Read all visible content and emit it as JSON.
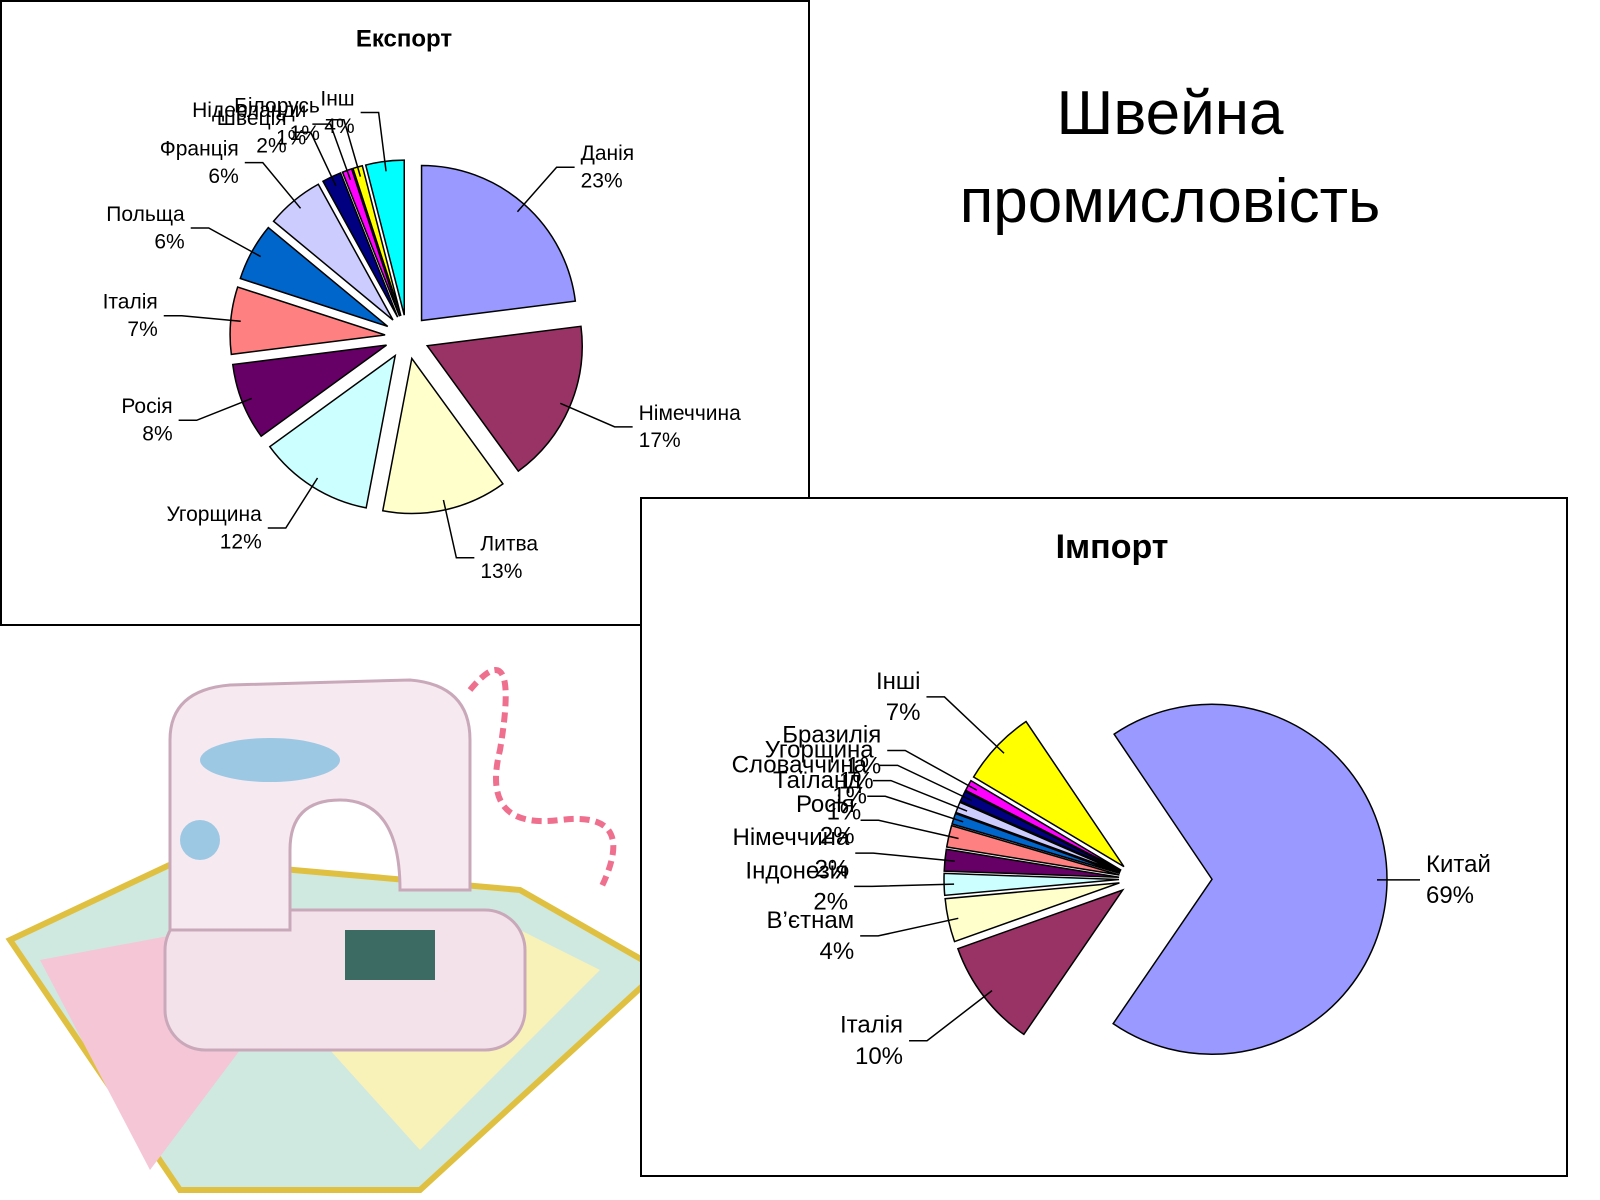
{
  "title": "Швейна промисловість",
  "chart_data": [
    {
      "type": "pie",
      "title": "Експорт",
      "categories": [
        "Данія",
        "Німеччина",
        "Литва",
        "Угорщина",
        "Росія",
        "Італія",
        "Польща",
        "Франція",
        "Швеція",
        "Нідерланди",
        "Білорусь",
        "Інш"
      ],
      "values": [
        23,
        17,
        13,
        12,
        8,
        7,
        6,
        6,
        2,
        1,
        1,
        4
      ],
      "value_labels": [
        "23%",
        "17%",
        "13%",
        "12%",
        "8%",
        "7%",
        "6%",
        "6%",
        "2%",
        "1%",
        "1%",
        "4%"
      ],
      "colors": [
        "#9999ff",
        "#993366",
        "#ffffcc",
        "#ccffff",
        "#660066",
        "#ff8080",
        "#0066cc",
        "#ccccff",
        "#000080",
        "#ff00ff",
        "#ffff00",
        "#00ffff"
      ]
    },
    {
      "type": "pie",
      "title": "Імпорт",
      "categories": [
        "Китай",
        "Італія",
        "В’єтнам",
        "Індонезія",
        "Німеччина",
        "Росія",
        "Таїланд",
        "Словаччина",
        "Угорщина",
        "Бразилія",
        "Інші"
      ],
      "values": [
        69,
        10,
        4,
        2,
        2,
        2,
        1,
        1,
        1,
        1,
        7
      ],
      "value_labels": [
        "69%",
        "10%",
        "4%",
        "2%",
        "2%",
        "2%",
        "1%",
        "1%",
        "1%",
        "1%",
        "7%"
      ],
      "colors": [
        "#9999ff",
        "#993366",
        "#ffffcc",
        "#ccffff",
        "#660066",
        "#ff8080",
        "#0066cc",
        "#ccccff",
        "#000080",
        "#ff00ff",
        "#ffff00"
      ]
    }
  ]
}
